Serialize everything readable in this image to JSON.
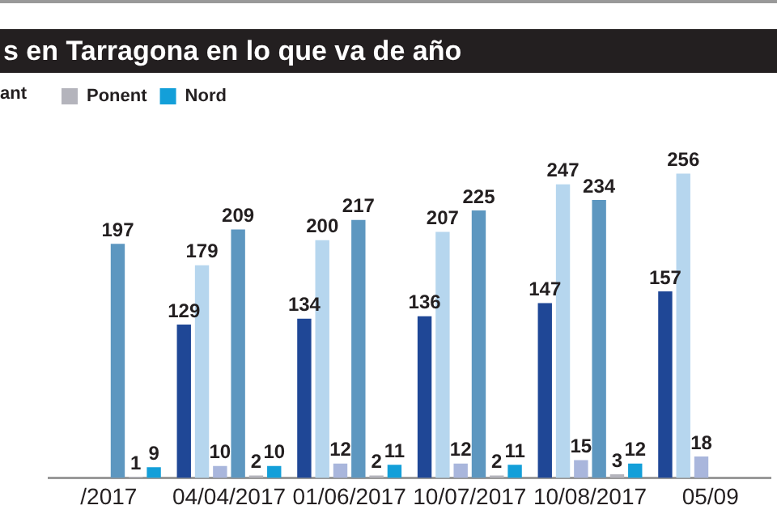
{
  "chart_data": {
    "type": "bar",
    "title": "s en Tarragona en lo que va de año",
    "categories": [
      "/2017",
      "04/04/2017",
      "01/06/2017",
      "10/07/2017",
      "10/08/2017",
      "05/09"
    ],
    "series": [
      {
        "color": "#1f4796",
        "values": [
          null,
          129,
          134,
          136,
          147,
          157
        ]
      },
      {
        "color": "#b6d6ee",
        "values": [
          null,
          179,
          200,
          207,
          247,
          256
        ]
      },
      {
        "color": "#a9b6dc",
        "values": [
          null,
          10,
          12,
          12,
          15,
          18
        ]
      },
      {
        "color": "#5d97c0",
        "values": [
          197,
          209,
          217,
          225,
          234,
          null
        ]
      },
      {
        "name": "Ponent",
        "color": "#b4b4bc",
        "values": [
          1,
          2,
          2,
          2,
          3,
          null
        ]
      },
      {
        "name": "Nord",
        "color": "#139fd9",
        "values": [
          9,
          10,
          11,
          11,
          12,
          null
        ]
      }
    ],
    "data_labels": true,
    "grid": false,
    "legend": "top left",
    "annotations": [
      "ant"
    ]
  }
}
